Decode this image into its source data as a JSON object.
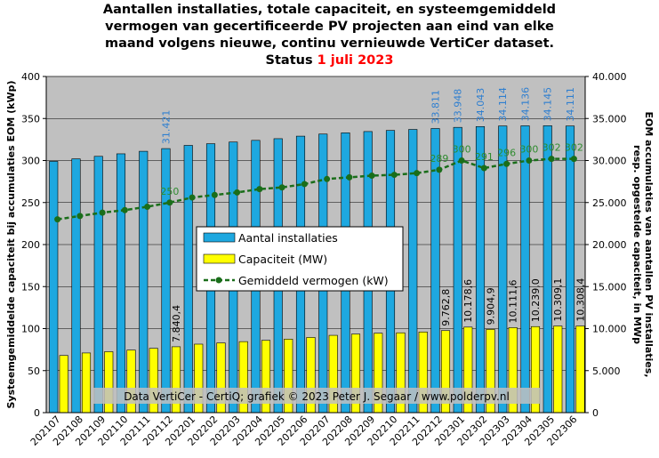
{
  "title": {
    "line1": "Aantallen installaties, totale capaciteit, en systeemgemiddeld",
    "line2": "vermogen van gecertificeerde PV projecten aan eind van elke",
    "line3": "maand volgens nieuwe, continu vernieuwde VertiCer dataset.",
    "status_label": "Status",
    "status_date": "1 juli 2023"
  },
  "credit": "Data VertiCer - CertiQ; grafiek © 2023 Peter J. Segaar / www.polderpv.nl",
  "colors": {
    "plot_bg": "#c0c0c0",
    "installations": "#1ea8e0",
    "capacity": "#ffff00",
    "average": "#1a6e1a",
    "label_blue": "#2f7fd0",
    "title_red": "#ff0000"
  },
  "chart_data": {
    "type": "bar",
    "categories": [
      "202107",
      "202108",
      "202109",
      "202110",
      "202111",
      "202112",
      "202201",
      "202202",
      "202203",
      "202204",
      "202205",
      "202206",
      "202207",
      "202208",
      "202209",
      "202210",
      "202211",
      "202212",
      "202301",
      "202302",
      "202303",
      "202304",
      "202305",
      "202306"
    ],
    "left_axis": {
      "label": "Systeemgemiddelde capaciteit bij accumulaties EOM (kWp)",
      "ylim": [
        0,
        400
      ],
      "ticks": [
        "0",
        "50",
        "100",
        "150",
        "200",
        "250",
        "300",
        "350",
        "400"
      ]
    },
    "right_axis": {
      "label_line1": "EOM accumulaties van aantallen PV installaties,",
      "label_line2": "resp. opgestelde capaciteit, in MWp",
      "ylim": [
        0,
        40000
      ],
      "ticks": [
        "0",
        "5.000",
        "10.000",
        "15.000",
        "20.000",
        "25.000",
        "30.000",
        "35.000",
        "40.000"
      ]
    },
    "grid": true,
    "legend_position": "center",
    "series": [
      {
        "name": "Aantal installaties",
        "type": "bar",
        "axis": "right",
        "values": [
          29900,
          30200,
          30500,
          30800,
          31100,
          31421,
          31800,
          32000,
          32200,
          32400,
          32600,
          32900,
          33150,
          33300,
          33450,
          33580,
          33700,
          33811,
          33948,
          34043,
          34114,
          34136,
          34145,
          34111
        ]
      },
      {
        "name": "Capaciteit (MW)",
        "type": "bar",
        "axis": "right",
        "values": [
          6800,
          7100,
          7250,
          7450,
          7650,
          7840.4,
          8150,
          8300,
          8450,
          8600,
          8750,
          8950,
          9200,
          9350,
          9450,
          9500,
          9600,
          9762.8,
          10178.6,
          9904.9,
          10111.6,
          10239.0,
          10309.1,
          10308.4
        ]
      },
      {
        "name": "Gemiddeld vermogen (kW)",
        "type": "line",
        "axis": "left",
        "values": [
          230,
          234,
          238,
          241,
          245,
          250,
          256,
          259,
          262,
          266,
          268,
          272,
          278,
          280,
          282,
          283,
          285,
          289,
          300,
          291,
          296,
          300,
          302,
          302
        ]
      }
    ],
    "bar_labels": {
      "installations": [
        {
          "i": 5,
          "text": "31.421"
        },
        {
          "i": 17,
          "text": "33.811"
        },
        {
          "i": 18,
          "text": "33.948"
        },
        {
          "i": 19,
          "text": "34.043"
        },
        {
          "i": 20,
          "text": "34.114"
        },
        {
          "i": 21,
          "text": "34.136"
        },
        {
          "i": 22,
          "text": "34.145"
        },
        {
          "i": 23,
          "text": "34.111"
        }
      ],
      "capacity": [
        {
          "i": 5,
          "text": "7.840,4"
        },
        {
          "i": 17,
          "text": "9.762,8"
        },
        {
          "i": 18,
          "text": "10.178,6"
        },
        {
          "i": 19,
          "text": "9.904,9"
        },
        {
          "i": 20,
          "text": "10.111,6"
        },
        {
          "i": 21,
          "text": "10.239,0"
        },
        {
          "i": 22,
          "text": "10.309,1"
        },
        {
          "i": 23,
          "text": "10.308,4"
        }
      ],
      "average": [
        {
          "i": 5,
          "text": "250"
        },
        {
          "i": 17,
          "text": "289"
        },
        {
          "i": 18,
          "text": "300"
        },
        {
          "i": 19,
          "text": "291"
        },
        {
          "i": 20,
          "text": "296"
        },
        {
          "i": 21,
          "text": "300"
        },
        {
          "i": 22,
          "text": "302"
        },
        {
          "i": 23,
          "text": "302"
        }
      ]
    }
  }
}
